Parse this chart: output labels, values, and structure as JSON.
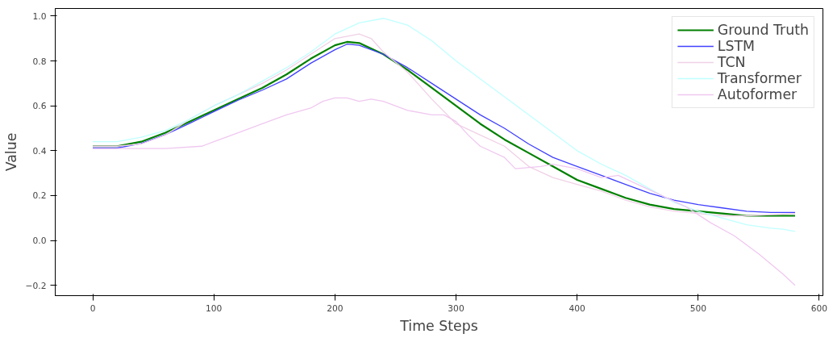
{
  "chart_data": {
    "type": "line",
    "xlabel": "Time Steps",
    "ylabel": "Value",
    "xlim": [
      -31,
      603
    ],
    "ylim": [
      -0.246,
      1.034
    ],
    "xticks": [
      0,
      100,
      200,
      300,
      400,
      500,
      600
    ],
    "yticks": [
      {
        "value": -0.2,
        "label": "−0.2"
      },
      {
        "value": 0,
        "label": "0.0"
      },
      {
        "value": 0.2,
        "label": "0.2"
      },
      {
        "value": 0.4,
        "label": "0.4"
      },
      {
        "value": 0.6,
        "label": "0.6"
      },
      {
        "value": 0.8,
        "label": "0.8"
      },
      {
        "value": 1.0,
        "label": "1.0"
      }
    ],
    "grid": false,
    "legend": "top right",
    "line_style": "solid",
    "marker": "none",
    "series": [
      {
        "name": "Ground Truth",
        "color": "#008000",
        "x": [
          0,
          20,
          40,
          60,
          80,
          100,
          120,
          140,
          160,
          180,
          200,
          210,
          220,
          240,
          260,
          280,
          300,
          320,
          340,
          360,
          380,
          400,
          420,
          440,
          460,
          480,
          500,
          520,
          540,
          560,
          580
        ],
        "values": [
          0.42,
          0.42,
          0.44,
          0.48,
          0.53,
          0.58,
          0.63,
          0.68,
          0.74,
          0.81,
          0.87,
          0.885,
          0.88,
          0.83,
          0.76,
          0.68,
          0.6,
          0.52,
          0.45,
          0.39,
          0.33,
          0.27,
          0.23,
          0.19,
          0.16,
          0.14,
          0.13,
          0.12,
          0.11,
          0.11,
          0.11
        ]
      },
      {
        "name": "LSTM",
        "color": "#4040ff",
        "x": [
          0,
          20,
          40,
          60,
          80,
          100,
          120,
          140,
          160,
          180,
          200,
          210,
          220,
          240,
          260,
          280,
          300,
          320,
          340,
          360,
          380,
          400,
          420,
          440,
          460,
          480,
          500,
          520,
          540,
          560,
          580
        ],
        "values": [
          0.412,
          0.412,
          0.432,
          0.472,
          0.522,
          0.574,
          0.625,
          0.67,
          0.72,
          0.79,
          0.85,
          0.875,
          0.87,
          0.83,
          0.77,
          0.7,
          0.63,
          0.56,
          0.5,
          0.43,
          0.37,
          0.33,
          0.29,
          0.25,
          0.21,
          0.18,
          0.16,
          0.145,
          0.13,
          0.125,
          0.125
        ]
      },
      {
        "name": "TCN",
        "color": "#f0d0e6",
        "x": [
          0,
          20,
          40,
          60,
          80,
          100,
          120,
          140,
          160,
          180,
          200,
          220,
          230,
          240,
          260,
          280,
          300,
          320,
          340,
          360,
          380,
          400,
          420,
          440,
          460,
          480,
          500,
          520,
          540,
          560,
          580
        ],
        "values": [
          0.42,
          0.42,
          0.43,
          0.47,
          0.54,
          0.6,
          0.65,
          0.7,
          0.76,
          0.83,
          0.9,
          0.92,
          0.9,
          0.84,
          0.75,
          0.63,
          0.52,
          0.47,
          0.42,
          0.33,
          0.28,
          0.25,
          0.22,
          0.18,
          0.15,
          0.13,
          0.12,
          0.11,
          0.11,
          0.115,
          0.12
        ]
      },
      {
        "name": "Transformer",
        "color": "#c0ffff",
        "x": [
          0,
          20,
          40,
          60,
          80,
          100,
          120,
          140,
          160,
          180,
          200,
          220,
          240,
          260,
          280,
          300,
          320,
          340,
          360,
          380,
          400,
          420,
          440,
          460,
          480,
          500,
          520,
          540,
          560,
          570,
          580
        ],
        "values": [
          0.44,
          0.44,
          0.46,
          0.49,
          0.54,
          0.6,
          0.65,
          0.71,
          0.77,
          0.84,
          0.92,
          0.97,
          0.99,
          0.96,
          0.89,
          0.8,
          0.72,
          0.64,
          0.56,
          0.48,
          0.4,
          0.34,
          0.29,
          0.23,
          0.17,
          0.13,
          0.1,
          0.07,
          0.055,
          0.05,
          0.04
        ]
      },
      {
        "name": "Autoformer",
        "color": "#f0c8f0",
        "x": [
          0,
          20,
          40,
          60,
          90,
          100,
          120,
          140,
          160,
          180,
          190,
          200,
          210,
          220,
          230,
          240,
          260,
          280,
          290,
          300,
          310,
          320,
          340,
          349,
          370,
          380,
          400,
          420,
          434,
          450,
          470,
          490,
          510,
          530,
          550,
          570,
          580
        ],
        "values": [
          0.41,
          0.41,
          0.41,
          0.41,
          0.42,
          0.44,
          0.48,
          0.52,
          0.56,
          0.59,
          0.62,
          0.635,
          0.635,
          0.62,
          0.63,
          0.62,
          0.58,
          0.56,
          0.56,
          0.53,
          0.47,
          0.42,
          0.37,
          0.32,
          0.33,
          0.34,
          0.32,
          0.28,
          0.29,
          0.25,
          0.2,
          0.15,
          0.08,
          0.02,
          -0.06,
          -0.15,
          -0.2
        ]
      }
    ]
  }
}
